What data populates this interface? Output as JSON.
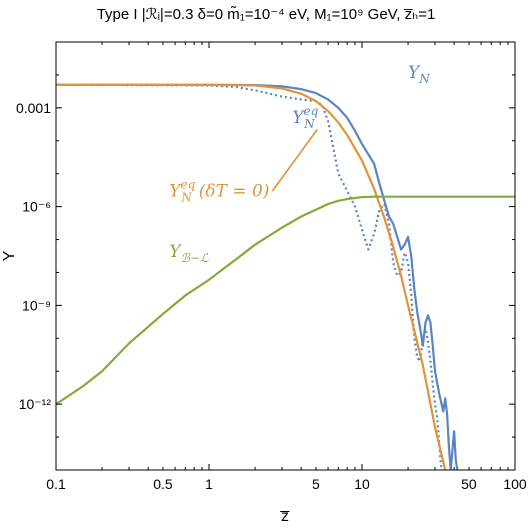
{
  "chart_data": {
    "type": "line",
    "title": "Type I |ℛᵢ|=0.3 δ=0 m̃₁=10⁻⁴ eV, M₁=10⁹ GeV, z̅ₕ=1",
    "xlabel": "z̅",
    "ylabel": "Y",
    "xscale": "log",
    "yscale": "log",
    "xlim": [
      0.1,
      100
    ],
    "ylim": [
      1e-14,
      0.1
    ],
    "x_ticks": [
      {
        "value": 0.1,
        "label": "0.1"
      },
      {
        "value": 0.5,
        "label": "0.5"
      },
      {
        "value": 1,
        "label": "1"
      },
      {
        "value": 5,
        "label": "5"
      },
      {
        "value": 10,
        "label": "10"
      },
      {
        "value": 50,
        "label": "50"
      },
      {
        "value": 100,
        "label": "100"
      }
    ],
    "y_ticks": [
      {
        "value": 0.001,
        "label": "0.001"
      },
      {
        "value": 1e-06,
        "label": "10⁻⁶"
      },
      {
        "value": 1e-09,
        "label": "10⁻⁹"
      },
      {
        "value": 1e-12,
        "label": "10⁻¹²"
      }
    ],
    "series": [
      {
        "name": "Y_N",
        "color": "#5b84c4",
        "style": "solid",
        "points": [
          [
            0.1,
            0.005
          ],
          [
            1,
            0.005
          ],
          [
            2,
            0.0049
          ],
          [
            3,
            0.0045
          ],
          [
            4,
            0.0037
          ],
          [
            5,
            0.0028
          ],
          [
            6,
            0.0018
          ],
          [
            7,
            0.001
          ],
          [
            8,
            0.0005
          ],
          [
            9,
            0.0002
          ],
          [
            10,
            8e-05
          ],
          [
            12,
            2e-05
          ],
          [
            13,
            5e-06
          ],
          [
            14,
            1.5e-06
          ],
          [
            15,
            5e-07
          ],
          [
            16,
            3e-07
          ],
          [
            17,
            1.2e-07
          ],
          [
            18,
            5e-08
          ],
          [
            19,
            7e-08
          ],
          [
            20,
            1.2e-07
          ],
          [
            21,
            3e-08
          ],
          [
            22,
            3e-09
          ],
          [
            23,
            6e-10
          ],
          [
            24,
            2e-10
          ],
          [
            25,
            6e-11
          ],
          [
            26,
            3e-10
          ],
          [
            27,
            5e-10
          ],
          [
            28,
            3e-10
          ],
          [
            29,
            6e-11
          ],
          [
            30,
            1e-11
          ],
          [
            32,
            2e-12
          ],
          [
            34,
            6e-13
          ],
          [
            35,
            1.5e-12
          ],
          [
            36,
            5e-13
          ],
          [
            37,
            5e-14
          ],
          [
            38,
            1e-14
          ],
          [
            40,
            1.5e-13
          ],
          [
            41,
            2e-14
          ],
          [
            42,
            1e-14
          ]
        ]
      },
      {
        "name": "Y_N^eq",
        "color": "#5b84c4",
        "style": "dotted",
        "points": [
          [
            0.1,
            0.005
          ],
          [
            1,
            0.0048
          ],
          [
            1.5,
            0.0043
          ],
          [
            2,
            0.0034
          ],
          [
            3,
            0.0022
          ],
          [
            4,
            0.0018
          ],
          [
            5,
            0.0016
          ],
          [
            5.5,
            0.0012
          ],
          [
            6,
            0.0004
          ],
          [
            6.5,
            6e-05
          ],
          [
            7,
            1e-05
          ],
          [
            8,
            3e-06
          ],
          [
            9,
            1e-06
          ],
          [
            10,
            2e-07
          ],
          [
            11,
            5e-08
          ],
          [
            12,
            1.5e-07
          ],
          [
            13,
            8e-07
          ],
          [
            14,
            1.2e-06
          ],
          [
            15,
            3e-07
          ],
          [
            16,
            2e-08
          ],
          [
            17,
            8e-09
          ],
          [
            18,
            1e-08
          ],
          [
            19,
            4e-08
          ],
          [
            20,
            2e-08
          ],
          [
            21,
            2e-09
          ],
          [
            22,
            1e-10
          ],
          [
            23,
            2.5e-11
          ],
          [
            24,
            2e-11
          ],
          [
            25,
            1e-10
          ],
          [
            26,
            2e-10
          ],
          [
            27,
            8e-11
          ],
          [
            28,
            2e-11
          ],
          [
            29,
            4e-12
          ],
          [
            30,
            1e-12
          ],
          [
            31,
            4e-13
          ],
          [
            32,
            6e-14
          ],
          [
            33,
            1e-14
          ]
        ]
      },
      {
        "name": "Y_N^eq(δT=0)",
        "color": "#e0943a",
        "style": "solid",
        "points": [
          [
            0.1,
            0.005
          ],
          [
            1,
            0.005
          ],
          [
            2,
            0.0048
          ],
          [
            3,
            0.0039
          ],
          [
            4,
            0.0027
          ],
          [
            5,
            0.0016
          ],
          [
            6,
            0.0008
          ],
          [
            7,
            0.00036
          ],
          [
            8,
            0.00015
          ],
          [
            10,
            2.5e-05
          ],
          [
            12,
            3.5e-06
          ],
          [
            14,
            4.5e-07
          ],
          [
            16,
            6e-08
          ],
          [
            18,
            8e-09
          ],
          [
            20,
            1e-09
          ],
          [
            25,
            1.5e-11
          ],
          [
            30,
            2e-13
          ],
          [
            35,
            1e-14
          ]
        ]
      },
      {
        "name": "Y_{B−L}",
        "color": "#7fac35",
        "style": "solid",
        "points": [
          [
            0.1,
            1e-12
          ],
          [
            0.15,
            3.5e-12
          ],
          [
            0.2,
            1e-11
          ],
          [
            0.3,
            7e-11
          ],
          [
            0.5,
            5.5e-10
          ],
          [
            0.7,
            2e-09
          ],
          [
            1,
            6e-09
          ],
          [
            1.5,
            2.5e-08
          ],
          [
            2,
            7e-08
          ],
          [
            3,
            2.3e-07
          ],
          [
            4,
            5e-07
          ],
          [
            5,
            8e-07
          ],
          [
            6,
            1.2e-06
          ],
          [
            7,
            1.5e-06
          ],
          [
            8,
            1.7e-06
          ],
          [
            10,
            1.95e-06
          ],
          [
            12,
            2e-06
          ],
          [
            15,
            2e-06
          ],
          [
            20,
            2e-06
          ],
          [
            50,
            2e-06
          ],
          [
            100,
            2e-06
          ]
        ]
      }
    ],
    "annotations": [
      {
        "base": "Y",
        "sub": "N",
        "sup": "",
        "suffix": "",
        "color": "#5b84c4",
        "at": [
          20,
          0.008
        ]
      },
      {
        "base": "Y",
        "sub": "N",
        "sup": "eq",
        "suffix": "",
        "color": "#5b84c4",
        "at": [
          3.5,
          0.00035
        ]
      },
      {
        "base": "Y",
        "sub": "N",
        "sup": "eq",
        "suffix": "(δT = 0)",
        "color": "#e0943a",
        "at": [
          0.55,
          2e-06
        ]
      },
      {
        "base": "Y",
        "sub": "ℬ−ℒ",
        "sup": "",
        "suffix": "",
        "color": "#7fac35",
        "at": [
          0.55,
          3e-08
        ]
      }
    ],
    "leader_line": {
      "color": "#e0943a",
      "from": [
        2.6,
        3e-06
      ],
      "to": [
        5.1,
        0.00022
      ]
    }
  }
}
